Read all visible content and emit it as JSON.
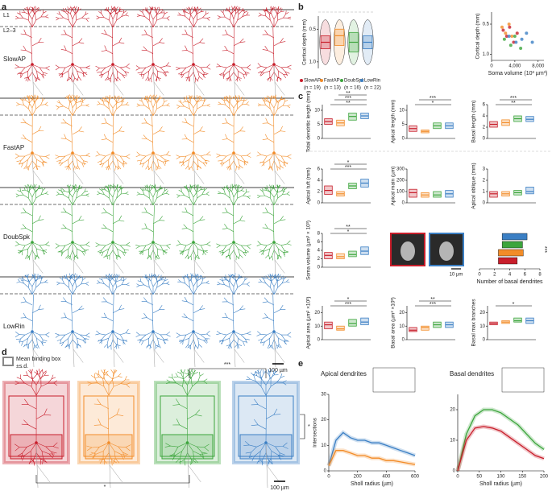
{
  "panel_labels": [
    "a",
    "b",
    "c",
    "d",
    "e"
  ],
  "groups": [
    {
      "name": "SlowAP",
      "n": "(n = 19)",
      "color": "#c81e2b"
    },
    {
      "name": "FastAP",
      "n": "(n = 13)",
      "color": "#f28c28"
    },
    {
      "name": "DoubSpk",
      "n": "(n = 16)",
      "color": "#3ca53c"
    },
    {
      "name": "LowRin",
      "n": "(n = 22)",
      "color": "#3b7fc4"
    }
  ],
  "a": {
    "layers": [
      "L1",
      "L2–3"
    ],
    "scale": "100 µm"
  },
  "b": {
    "violin": {
      "ylabel": "Cortical depth (mm)",
      "ylim": [
        0.3,
        1.1
      ],
      "inverted": true,
      "yticks": [
        0.5,
        {
          "value": 1,
          "label": "1.0"
        }
      ],
      "boxes": [
        [
          0.6,
          0.7,
          0.8
        ],
        [
          0.5,
          0.6,
          0.75
        ],
        [
          0.55,
          0.7,
          0.85
        ],
        [
          0.6,
          0.7,
          0.8
        ]
      ]
    },
    "scatter": {
      "ylabel": "Cortical depth (mm)",
      "xlabel": "Soma volume (10³ µm³)",
      "xlim": [
        0,
        9000
      ],
      "xticks": [
        0,
        {
          "value": 4000,
          "label": "4,000"
        },
        {
          "value": 8000,
          "label": "8,000"
        }
      ],
      "ylim": [
        0.3,
        1.1
      ],
      "inverted": true,
      "yticks": [
        0.5,
        {
          "value": 1,
          "label": "1.0"
        }
      ],
      "series": [
        {
          "color": "#c81e2b",
          "x": [
            2000,
            2600,
            3100,
            3800,
            4400
          ],
          "y": [
            0.6,
            0.7,
            0.55,
            0.8,
            0.65
          ]
        },
        {
          "color": "#f28c28",
          "x": [
            1800,
            2400,
            3000,
            3500
          ],
          "y": [
            0.55,
            0.65,
            0.5,
            0.7
          ]
        },
        {
          "color": "#3ca53c",
          "x": [
            2200,
            3300,
            4000,
            5000
          ],
          "y": [
            0.75,
            0.85,
            0.7,
            0.9
          ]
        },
        {
          "color": "#3b7fc4",
          "x": [
            3000,
            4200,
            5200,
            6000,
            7000
          ],
          "y": [
            0.7,
            0.8,
            0.75,
            0.65,
            0.8
          ]
        }
      ]
    }
  },
  "c": {
    "charts": [
      {
        "label": "Total dendritic length (mm)",
        "ylim": [
          0,
          12
        ],
        "yticks": [
          0,
          5,
          10
        ],
        "boxes": [
          [
            5,
            6,
            7
          ],
          [
            4.5,
            5.5,
            6.5
          ],
          [
            6.5,
            7.8,
            9
          ],
          [
            7,
            8,
            9
          ]
        ],
        "stars": [
          "**",
          "***",
          "**"
        ]
      },
      {
        "label": "Apical length (mm)",
        "ylim": [
          0,
          12
        ],
        "yticks": [
          0,
          5,
          10
        ],
        "boxes": [
          [
            2.5,
            3.5,
            4.5
          ],
          [
            2,
            2.5,
            3
          ],
          [
            3.5,
            4.5,
            5.5
          ],
          [
            3.5,
            4.5,
            5.5
          ]
        ],
        "stars": [
          "*",
          "***"
        ]
      },
      {
        "label": "Basal length (mm)",
        "ylim": [
          0,
          6
        ],
        "yticks": [
          0,
          2,
          4,
          6
        ],
        "boxes": [
          [
            2,
            2.5,
            3
          ],
          [
            2.3,
            2.8,
            3.3
          ],
          [
            3,
            3.5,
            4
          ],
          [
            3,
            3.4,
            3.9
          ]
        ],
        "stars": [
          "**",
          "***"
        ]
      },
      {
        "label": "Apical tuft (mm)",
        "ylim": [
          0,
          6
        ],
        "yticks": [
          0,
          2,
          4,
          6
        ],
        "boxes": [
          [
            1.5,
            2.2,
            3
          ],
          [
            1.2,
            1.6,
            2
          ],
          [
            2.5,
            3,
            3.5
          ],
          [
            2.8,
            3.5,
            4.2
          ]
        ],
        "stars": [
          "***",
          "*"
        ]
      },
      {
        "label": "Apical main (µm)",
        "ylim": [
          0,
          300
        ],
        "yticks": [
          0,
          100,
          200,
          300
        ],
        "boxes": [
          [
            50,
            90,
            120
          ],
          [
            50,
            70,
            90
          ],
          [
            50,
            70,
            100
          ],
          [
            50,
            80,
            110
          ]
        ],
        "stars": []
      },
      {
        "label": "Apical oblique (mm)",
        "ylim": [
          0,
          3
        ],
        "yticks": [
          0,
          1,
          2,
          3
        ],
        "boxes": [
          [
            0.5,
            0.8,
            1
          ],
          [
            0.6,
            0.8,
            1
          ],
          [
            0.7,
            0.9,
            1.1
          ],
          [
            0.8,
            1,
            1.4
          ]
        ],
        "stars": []
      },
      {
        "label": "Soma volume (µm³ × 10³)",
        "ylim": [
          0,
          8
        ],
        "yticks": [
          0,
          2,
          4,
          6,
          8
        ],
        "boxes": [
          [
            2,
            2.8,
            3.5
          ],
          [
            2,
            2.5,
            3.2
          ],
          [
            2.5,
            3,
            3.8
          ],
          [
            3,
            3.8,
            4.8
          ]
        ],
        "stars": [
          "*",
          "**"
        ]
      },
      {
        "label": "Apical area (µm² ×10³)",
        "ylim": [
          0,
          25
        ],
        "yticks": [
          0,
          10,
          20
        ],
        "boxes": [
          [
            8,
            11,
            13
          ],
          [
            7,
            8,
            10
          ],
          [
            10,
            12,
            15
          ],
          [
            11,
            13,
            16
          ]
        ],
        "stars": [
          "***",
          "*"
        ]
      },
      {
        "label": "Basal area (µm² ×10³)",
        "ylim": [
          0,
          25
        ],
        "yticks": [
          0,
          10,
          20
        ],
        "boxes": [
          [
            6,
            7,
            9
          ],
          [
            7,
            9,
            10
          ],
          [
            9,
            11,
            13
          ],
          [
            9,
            11,
            13
          ]
        ],
        "stars": [
          "***",
          "**"
        ]
      },
      {
        "label": "Basal max branches",
        "ylim": [
          0,
          25
        ],
        "yticks": [
          0,
          10,
          20
        ],
        "boxes": [
          [
            11,
            12,
            13
          ],
          [
            12,
            13,
            14
          ],
          [
            13,
            14,
            16
          ],
          [
            12,
            14,
            16
          ]
        ],
        "stars": [
          "*"
        ]
      }
    ],
    "image_scale": "10 µm",
    "basal_dendrites": {
      "label": "Number of basal dendrites",
      "xlim": [
        0,
        8
      ],
      "xticks": [
        0,
        2,
        4,
        6,
        8
      ],
      "low": [
        2.5,
        2.5,
        3,
        3
      ],
      "high": [
        5,
        5.8,
        5.7,
        6.3
      ],
      "stars": "***"
    }
  },
  "d": {
    "legend": [
      "Mean binding box",
      "±s.d."
    ],
    "stars": [
      "***",
      "*",
      "*"
    ],
    "scale": "100 µm"
  },
  "e": {
    "apical": {
      "title": "Apical dendrites",
      "ylabel": "Intersections",
      "xlabel": "Sholl radius (µm)",
      "xlim": [
        0,
        600
      ],
      "xticks": [
        0,
        200,
        400,
        600
      ],
      "ylim": [
        0,
        30
      ],
      "yticks": [
        0,
        10,
        20,
        30
      ],
      "x": [
        0,
        50,
        100,
        150,
        200,
        250,
        300,
        350,
        400,
        450,
        500,
        550,
        600
      ],
      "series": [
        {
          "color": "#3b7fc4",
          "values": [
            2,
            12,
            15,
            13,
            12,
            12,
            11,
            11,
            10,
            9,
            8,
            7,
            6
          ]
        },
        {
          "color": "#f28c28",
          "values": [
            2,
            8,
            8,
            7,
            6,
            6,
            5,
            5,
            4,
            4,
            3.5,
            3,
            2.5
          ]
        }
      ]
    },
    "basal": {
      "title": "Basal dendrites",
      "xlabel": "Sholl radius (µm)",
      "xlim": [
        0,
        200
      ],
      "xticks": [
        0,
        50,
        100,
        150,
        200
      ],
      "ylim": [
        0,
        25
      ],
      "yticks": [
        0,
        10,
        20
      ],
      "x": [
        0,
        20,
        40,
        60,
        80,
        100,
        120,
        140,
        160,
        180,
        200
      ],
      "series": [
        {
          "color": "#3ca53c",
          "values": [
            0,
            12,
            18,
            20,
            20,
            19,
            17,
            15,
            12,
            9,
            7
          ]
        },
        {
          "color": "#c81e2b",
          "values": [
            0,
            10,
            14,
            14.5,
            14,
            13,
            11,
            9,
            7,
            5,
            4
          ]
        }
      ]
    }
  }
}
